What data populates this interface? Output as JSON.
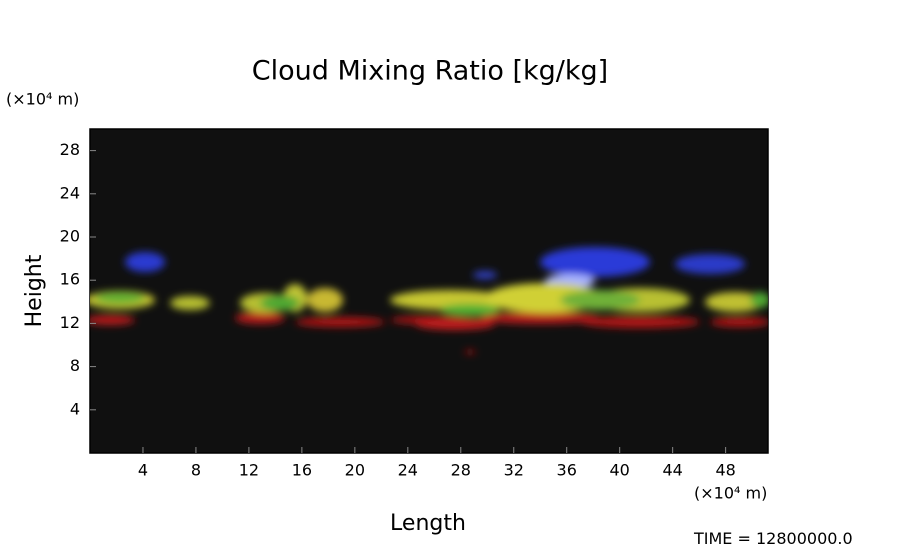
{
  "chart_data": {
    "type": "volume-render",
    "title": "Cloud Mixing Ratio [kg/kg]",
    "x_label": "Length",
    "y_label": "Height",
    "x_unit": "(×10⁴ m)",
    "y_unit": "(×10⁴ m)",
    "time_label": "TIME = 12800000.0",
    "xlim": [
      0,
      51.2
    ],
    "ylim": [
      0,
      30
    ],
    "xticks": [
      4,
      8,
      12,
      16,
      20,
      24,
      28,
      32,
      36,
      40,
      44,
      48
    ],
    "yticks": [
      4,
      8,
      12,
      16,
      20,
      24,
      28
    ],
    "background": "#101010"
  }
}
